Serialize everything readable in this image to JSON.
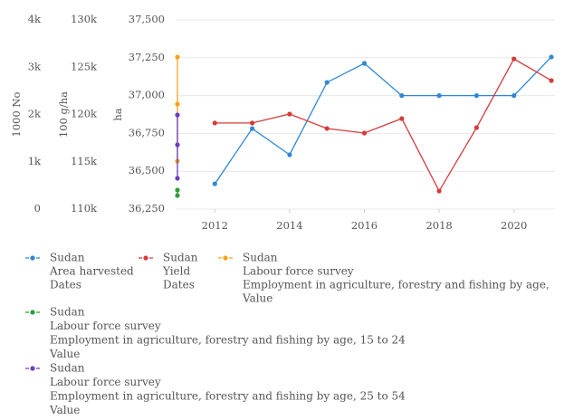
{
  "chart_data": {
    "type": "line",
    "xlim": [
      2011,
      2021
    ],
    "xticks": [
      2012,
      2014,
      2016,
      2018,
      2020
    ],
    "ylabel": "ha",
    "ylim": [
      36250,
      37500
    ],
    "yticks": [
      {
        "value": 36250,
        "label": "36,250"
      },
      {
        "value": 36500,
        "label": "36,500"
      },
      {
        "value": 36750,
        "label": "36,750"
      },
      {
        "value": 37000,
        "label": "37,000"
      },
      {
        "value": 37250,
        "label": "37,250"
      },
      {
        "value": 37500,
        "label": "37,500"
      }
    ],
    "y2label": "100 g/ha",
    "y2lim": [
      110000,
      130000
    ],
    "y2ticks": [
      {
        "value": 110000,
        "label": "110k"
      },
      {
        "value": 115000,
        "label": "115k"
      },
      {
        "value": 120000,
        "label": "120k"
      },
      {
        "value": 125000,
        "label": "125k"
      },
      {
        "value": 130000,
        "label": "130k"
      }
    ],
    "y3label": "1000 No",
    "y3lim": [
      0,
      4000
    ],
    "y3ticks": [
      0,
      {
        "value": 1000,
        "label": "1k"
      },
      {
        "value": 2000,
        "label": "2k"
      },
      {
        "value": 3000,
        "label": "3k"
      },
      {
        "value": 4000,
        "label": "4k"
      }
    ],
    "grid": true,
    "series": [
      {
        "name": [
          "Sudan",
          "Area harvested",
          "Dates"
        ],
        "color": "#2f86d6",
        "axis": "y",
        "x": [
          2012,
          2013,
          2014,
          2015,
          2016,
          2017,
          2018,
          2019,
          2020,
          2021
        ],
        "values": [
          36417,
          36782,
          36609,
          37087,
          37213,
          37000,
          37000,
          37000,
          37000,
          37255
        ]
      },
      {
        "name": [
          "Sudan",
          "Yield",
          "Dates"
        ],
        "color": "#d63a3a",
        "axis": "y2",
        "x": [
          2012,
          2013,
          2014,
          2015,
          2016,
          2017,
          2018,
          2019,
          2020,
          2021
        ],
        "values": [
          119100,
          119100,
          120050,
          118520,
          118040,
          119570,
          111910,
          118610,
          125880,
          123590
        ]
      },
      {
        "name": [
          "Sudan",
          "Labour force survey",
          "Employment in agriculture, forestry and fishing by age,",
          "Value"
        ],
        "color": "#f5a31a",
        "axis": "y3",
        "x": [
          2011,
          2011,
          2011
        ],
        "values": [
          3215,
          2220,
          1014
        ]
      },
      {
        "name": [
          "Sudan",
          "Labour force survey",
          "Employment in agriculture, forestry and fishing by age, 15 to 24",
          "Value"
        ],
        "color": "#2e9e3a",
        "axis": "y3",
        "x": [
          2011,
          2011
        ],
        "values": [
          402,
          287
        ]
      },
      {
        "name": [
          "Sudan",
          "Labour force survey",
          "Employment in agriculture, forestry and fishing by age, 25 to 54",
          "Value"
        ],
        "color": "#6a3fc0",
        "axis": "y3",
        "x": [
          2011,
          2011,
          2011
        ],
        "values": [
          1990,
          1359,
          651
        ]
      }
    ]
  }
}
